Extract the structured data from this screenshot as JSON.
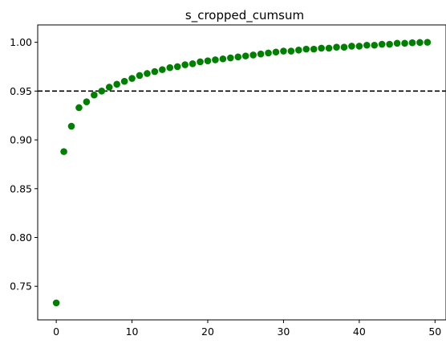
{
  "chart_data": {
    "type": "scatter",
    "title": "s_cropped_cumsum",
    "xlabel": "",
    "ylabel": "",
    "xlim": [
      -2.45,
      51.45
    ],
    "ylim": [
      0.7156,
      1.0178
    ],
    "xticks": [
      0,
      10,
      20,
      30,
      40,
      50
    ],
    "xtick_labels": [
      "0",
      "10",
      "20",
      "30",
      "40",
      "50"
    ],
    "yticks": [
      0.75,
      0.8,
      0.85,
      0.9,
      0.95,
      1.0
    ],
    "ytick_labels": [
      "0.75",
      "0.80",
      "0.85",
      "0.90",
      "0.95",
      "1.00"
    ],
    "grid": false,
    "point_color": "#008000",
    "reference_line": {
      "y": 0.95,
      "style": "dashed",
      "color": "#000000"
    },
    "series": [
      {
        "x": [
          0,
          1,
          2,
          3,
          4,
          5,
          6,
          7,
          8,
          9,
          10,
          11,
          12,
          13,
          14,
          15,
          16,
          17,
          18,
          19,
          20,
          21,
          22,
          23,
          24,
          25,
          26,
          27,
          28,
          29,
          30,
          31,
          32,
          33,
          34,
          35,
          36,
          37,
          38,
          39,
          40,
          41,
          42,
          43,
          44,
          45,
          46,
          47,
          48,
          49
        ],
        "y": [
          0.733,
          0.888,
          0.914,
          0.933,
          0.939,
          0.946,
          0.95,
          0.954,
          0.957,
          0.96,
          0.963,
          0.966,
          0.968,
          0.97,
          0.972,
          0.974,
          0.975,
          0.977,
          0.978,
          0.98,
          0.981,
          0.982,
          0.983,
          0.984,
          0.985,
          0.986,
          0.987,
          0.988,
          0.989,
          0.99,
          0.991,
          0.991,
          0.992,
          0.993,
          0.993,
          0.994,
          0.994,
          0.995,
          0.995,
          0.996,
          0.996,
          0.997,
          0.997,
          0.998,
          0.998,
          0.999,
          0.999,
          0.9995,
          0.9998,
          1.0
        ]
      }
    ]
  }
}
